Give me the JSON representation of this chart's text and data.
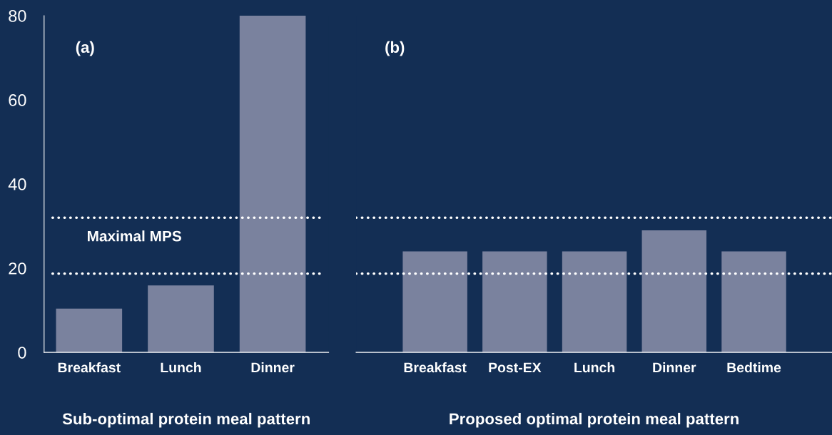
{
  "chart_data": [
    {
      "type": "bar",
      "categories": [
        "Breakfast",
        "Lunch",
        "Dinner"
      ],
      "values": [
        10.4,
        15.9,
        80
      ],
      "color": "#7a829e",
      "xlabel": "Sub-optimal protein meal pattern",
      "ylim": [
        0,
        80
      ],
      "yticks": [
        0,
        20,
        40,
        60,
        80
      ],
      "grid": false,
      "ref_lines": [
        {
          "axis": "y",
          "value": 32,
          "line_style": "dotted",
          "color": "#ffffff"
        },
        {
          "axis": "y",
          "value": 18.7,
          "line_style": "dotted",
          "color": "#ffffff"
        }
      ],
      "annotations": [
        "(a)",
        "Maximal MPS"
      ]
    },
    {
      "type": "bar",
      "categories": [
        "Breakfast",
        "Post-EX",
        "Lunch",
        "Dinner",
        "Bedtime"
      ],
      "values": [
        24,
        24,
        24,
        29,
        24
      ],
      "color": "#7a829e",
      "xlabel": "Proposed optimal protein meal pattern",
      "ylim": [
        0,
        80
      ],
      "tick_labels": "x",
      "grid": false,
      "ref_lines": [
        {
          "axis": "y",
          "value": 32,
          "line_style": "dotted",
          "color": "#ffffff"
        },
        {
          "axis": "y",
          "value": 18.7,
          "line_style": "dotted",
          "color": "#ffffff"
        }
      ],
      "annotations": [
        "(b)"
      ]
    }
  ]
}
